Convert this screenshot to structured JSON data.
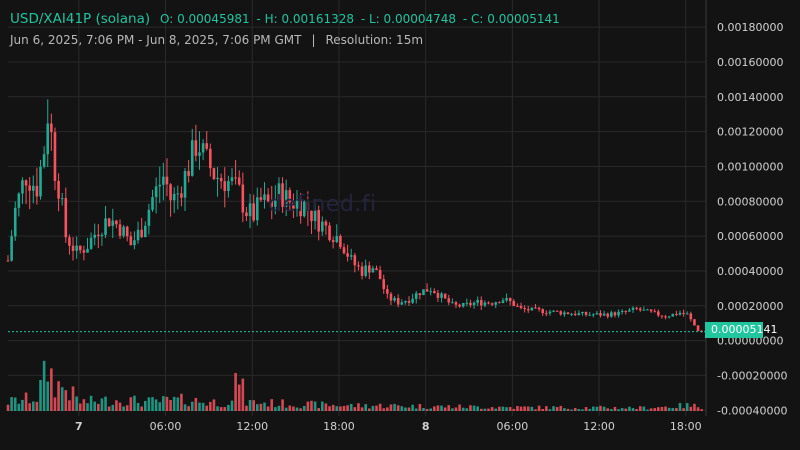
{
  "header": {
    "symbol": "USD/XAI41P (solana)",
    "open": "O: 0.00045981",
    "high": "H: 0.00161328",
    "low": "L: 0.00004748",
    "close": "C: 0.00005141",
    "date_range": "Jun 6, 2025, 7:06 PM - Jun 8, 2025, 7:06 PM GMT",
    "separator": "|",
    "resolution": "Resolution: 15m"
  },
  "watermark": "defined.fi",
  "last_price_label": "0.00005141",
  "colors": {
    "up": "#22ab94",
    "down": "#f7525f",
    "background": "#131313",
    "grid": "#2a2a2a",
    "last_price_line": "#22c3a0"
  },
  "chart_data": {
    "type": "candlestick",
    "y_axis_labels": [
      "0.00180000",
      "0.00160000",
      "0.00140000",
      "0.00120000",
      "0.00100000",
      "0.00080000",
      "0.00060000",
      "0.00040000",
      "0.00020000",
      "0.00000000",
      "-0.00020000",
      "-0.00040000"
    ],
    "y_axis_values": [
      0.0018,
      0.0016,
      0.0014,
      0.0012,
      0.001,
      0.0008,
      0.0006,
      0.0004,
      0.0002,
      0.0,
      -0.0002,
      -0.0004
    ],
    "ylim": [
      -0.00041,
      0.00191
    ],
    "x_tick_labels": [
      "7",
      "06:00",
      "12:00",
      "18:00",
      "8",
      "06:00",
      "12:00",
      "18:00"
    ],
    "x_tick_bold": [
      true,
      false,
      false,
      false,
      true,
      false,
      false,
      false
    ],
    "x_tick_hours": [
      4.9,
      10.9,
      16.9,
      22.9,
      28.9,
      34.9,
      40.9,
      46.9
    ],
    "bar_interval_hours": 0.25,
    "last_price": 5.141e-05,
    "price_path": [
      [
        0,
        0.00046
      ],
      [
        0.5,
        0.00075
      ],
      [
        1.2,
        0.00095
      ],
      [
        2.0,
        0.00088
      ],
      [
        2.5,
        0.0011
      ],
      [
        2.8,
        0.00135
      ],
      [
        3.2,
        0.001
      ],
      [
        3.6,
        0.00085
      ],
      [
        4.0,
        0.0006
      ],
      [
        4.8,
        0.0005
      ],
      [
        5.5,
        0.00055
      ],
      [
        6.3,
        0.00065
      ],
      [
        7.0,
        0.0007
      ],
      [
        7.8,
        0.00065
      ],
      [
        8.5,
        0.00055
      ],
      [
        9.3,
        0.00065
      ],
      [
        10.0,
        0.00082
      ],
      [
        10.8,
        0.00095
      ],
      [
        11.3,
        0.0008
      ],
      [
        11.8,
        0.00085
      ],
      [
        12.5,
        0.001
      ],
      [
        13.1,
        0.00115
      ],
      [
        13.6,
        0.00105
      ],
      [
        14.3,
        0.00095
      ],
      [
        15.5,
        0.0009
      ],
      [
        16.0,
        0.00085
      ],
      [
        16.4,
        0.00075
      ],
      [
        17.0,
        0.00072
      ],
      [
        17.5,
        0.0008
      ],
      [
        18.2,
        0.00078
      ],
      [
        18.8,
        0.00085
      ],
      [
        19.5,
        0.0008
      ],
      [
        20.5,
        0.00078
      ],
      [
        21.3,
        0.0007
      ],
      [
        22.0,
        0.00065
      ],
      [
        23.0,
        0.00058
      ],
      [
        23.8,
        0.00045
      ],
      [
        24.5,
        0.0004
      ],
      [
        25.2,
        0.00043
      ],
      [
        25.8,
        0.00035
      ],
      [
        26.2,
        0.00025
      ],
      [
        27.0,
        0.00022
      ],
      [
        27.8,
        0.00024
      ],
      [
        28.5,
        0.00028
      ],
      [
        29.3,
        0.0003
      ],
      [
        30.0,
        0.00025
      ],
      [
        30.8,
        0.0002
      ],
      [
        31.5,
        0.0002
      ],
      [
        32.5,
        0.00022
      ],
      [
        33.5,
        0.00022
      ],
      [
        34.2,
        0.00024
      ],
      [
        34.8,
        0.00022
      ],
      [
        35.5,
        0.00018
      ],
      [
        37.0,
        0.00017
      ],
      [
        38.5,
        0.00016
      ],
      [
        40.0,
        0.00015
      ],
      [
        41.5,
        0.00015
      ],
      [
        42.5,
        0.00016
      ],
      [
        43.5,
        0.00018
      ],
      [
        44.5,
        0.00016
      ],
      [
        45.5,
        0.00014
      ],
      [
        46.5,
        0.00016
      ],
      [
        47.0,
        0.00015
      ],
      [
        47.4,
        0.0001
      ],
      [
        47.7,
        6e-05
      ],
      [
        48.0,
        5.1e-05
      ]
    ],
    "volume_path": [
      [
        0,
        0.2
      ],
      [
        2.0,
        0.3
      ],
      [
        2.8,
        1.0
      ],
      [
        3.2,
        0.6
      ],
      [
        4.0,
        0.5
      ],
      [
        5.0,
        0.2
      ],
      [
        8.0,
        0.25
      ],
      [
        9.5,
        0.2
      ],
      [
        12.5,
        0.25
      ],
      [
        13.5,
        0.2
      ],
      [
        15.5,
        0.2
      ],
      [
        16.0,
        0.9
      ],
      [
        16.4,
        0.2
      ],
      [
        20.0,
        0.15
      ],
      [
        24.0,
        0.12
      ],
      [
        26.0,
        0.12
      ],
      [
        30.0,
        0.1
      ],
      [
        36.0,
        0.08
      ],
      [
        44.0,
        0.07
      ],
      [
        47.0,
        0.12
      ],
      [
        48.0,
        0.1
      ]
    ],
    "volume_max_value": 1
  }
}
